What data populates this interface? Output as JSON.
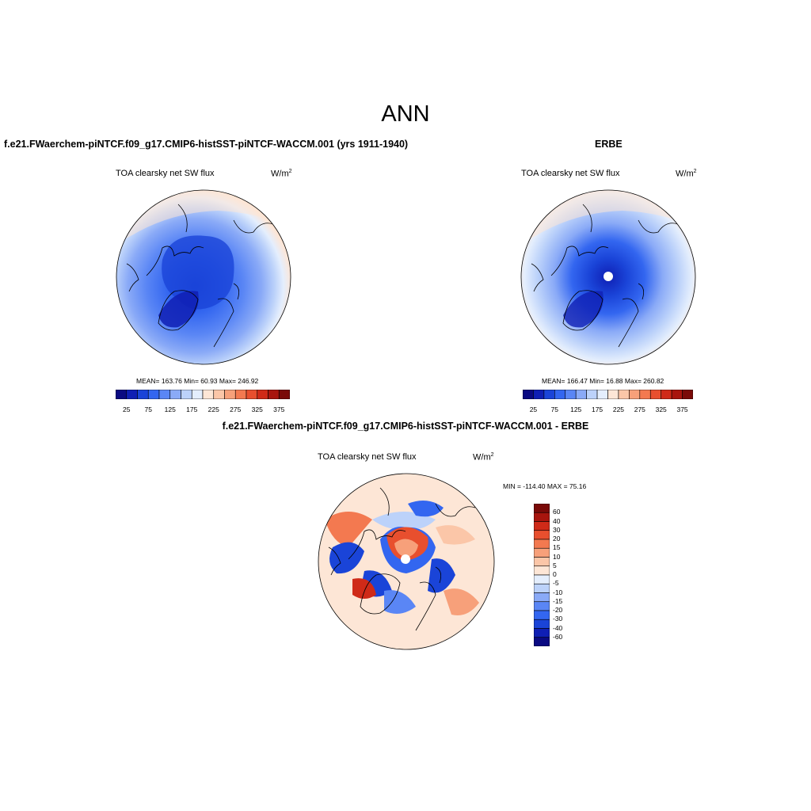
{
  "figure": {
    "title": "ANN",
    "panels": [
      {
        "case_title": "f.e21.FWaerchem-piNTCF.f09_g17.CMIP6-histSST-piNTCF-WACCM.001 (yrs 1911-1940)",
        "variable": "TOA clearsky net SW flux",
        "units": "W/m",
        "units_exp": "2",
        "stats": "MEAN= 163.76  Min=  60.93  Max= 246.92",
        "polar_hole": false
      },
      {
        "case_title": "ERBE",
        "variable": "TOA clearsky net SW flux",
        "units": "W/m",
        "units_exp": "2",
        "stats": "MEAN= 166.47  Min=  16.88  Max= 260.82",
        "polar_hole": true
      },
      {
        "case_title": "f.e21.FWaerchem-piNTCF.f09_g17.CMIP6-histSST-piNTCF-WACCM.001 - ERBE",
        "variable": "TOA clearsky net SW flux",
        "units": "W/m",
        "units_exp": "2",
        "stats": "MIN = -114.40 MAX =  75.16",
        "polar_hole": true
      }
    ]
  },
  "colorbars": {
    "field": {
      "colors": [
        "#0a0a82",
        "#0f1fb4",
        "#1a44d8",
        "#3366f0",
        "#5a86f5",
        "#8aaaf7",
        "#bcd2fa",
        "#e4eefd",
        "#fde6d6",
        "#fbc6a8",
        "#f7a07a",
        "#f37950",
        "#e84f2e",
        "#cf2a18",
        "#a8150e",
        "#7a0a08"
      ],
      "tick_labels": [
        "25",
        "75",
        "125",
        "175",
        "225",
        "275",
        "325",
        "375"
      ]
    },
    "diff": {
      "colors": [
        "#0a0a82",
        "#0f1fb4",
        "#1a44d8",
        "#3366f0",
        "#5a86f5",
        "#8aaaf7",
        "#bcd2fa",
        "#e4eefd",
        "#fde6d6",
        "#fbc6a8",
        "#f7a07a",
        "#f37950",
        "#e84f2e",
        "#cf2a18",
        "#a8150e",
        "#7a0a08"
      ],
      "tick_labels": [
        "60",
        "40",
        "30",
        "20",
        "15",
        "10",
        "5",
        "0",
        "-5",
        "-10",
        "-15",
        "-20",
        "-30",
        "-40",
        "-60"
      ]
    }
  }
}
